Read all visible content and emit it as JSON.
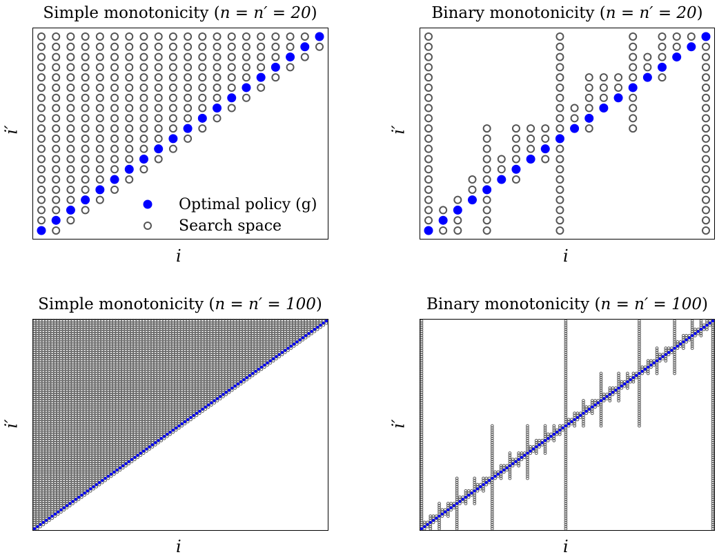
{
  "chart_data": [
    {
      "type": "scatter",
      "title": "Simple monotonicity (n = n′ = 20)",
      "title_text": "Simple monotonicity (",
      "title_math": "n = n′ = 20",
      "title_close": ")",
      "xlabel": "i",
      "ylabel": "i′",
      "n": 20,
      "method": "simple",
      "legend": {
        "placement": "bottom-right",
        "entries": [
          "Optimal policy (g)",
          "Search space"
        ]
      },
      "series": [
        {
          "name": "Optimal policy (g)",
          "style": "filled",
          "color": "#0000ff",
          "x": [
            1,
            2,
            3,
            4,
            5,
            6,
            7,
            8,
            9,
            10,
            11,
            12,
            13,
            14,
            15,
            16,
            17,
            18,
            19,
            20
          ],
          "y": [
            1,
            2,
            3,
            4,
            5,
            6,
            7,
            8,
            9,
            10,
            11,
            12,
            13,
            14,
            15,
            16,
            17,
            18,
            19,
            20
          ]
        },
        {
          "name": "Search space",
          "style": "open",
          "color": "#555555",
          "columns": [
            {
              "x": 1,
              "y_from": 1,
              "y_to": 20
            },
            {
              "x": 2,
              "y_from": 1,
              "y_to": 20
            },
            {
              "x": 3,
              "y_from": 2,
              "y_to": 20
            },
            {
              "x": 4,
              "y_from": 3,
              "y_to": 20
            },
            {
              "x": 5,
              "y_from": 4,
              "y_to": 20
            },
            {
              "x": 6,
              "y_from": 5,
              "y_to": 20
            },
            {
              "x": 7,
              "y_from": 6,
              "y_to": 20
            },
            {
              "x": 8,
              "y_from": 7,
              "y_to": 20
            },
            {
              "x": 9,
              "y_from": 8,
              "y_to": 20
            },
            {
              "x": 10,
              "y_from": 9,
              "y_to": 20
            },
            {
              "x": 11,
              "y_from": 10,
              "y_to": 20
            },
            {
              "x": 12,
              "y_from": 11,
              "y_to": 20
            },
            {
              "x": 13,
              "y_from": 12,
              "y_to": 20
            },
            {
              "x": 14,
              "y_from": 13,
              "y_to": 20
            },
            {
              "x": 15,
              "y_from": 14,
              "y_to": 20
            },
            {
              "x": 16,
              "y_from": 15,
              "y_to": 20
            },
            {
              "x": 17,
              "y_from": 16,
              "y_to": 20
            },
            {
              "x": 18,
              "y_from": 17,
              "y_to": 20
            },
            {
              "x": 19,
              "y_from": 18,
              "y_to": 20
            },
            {
              "x": 20,
              "y_from": 19,
              "y_to": 20
            }
          ]
        }
      ]
    },
    {
      "type": "scatter",
      "title": "Binary monotonicity (n = n′ = 20)",
      "title_text": "Binary monotonicity (",
      "title_math": "n = n′ = 20",
      "title_close": ")",
      "xlabel": "i",
      "ylabel": "i′",
      "n": 20,
      "method": "binary",
      "series": [
        {
          "name": "Optimal policy (g)",
          "style": "filled",
          "color": "#0000ff",
          "x": [
            1,
            2,
            3,
            4,
            5,
            6,
            7,
            8,
            9,
            10,
            11,
            12,
            13,
            14,
            15,
            16,
            17,
            18,
            19,
            20
          ],
          "y": [
            1,
            2,
            3,
            4,
            5,
            6,
            7,
            8,
            9,
            10,
            11,
            12,
            13,
            14,
            15,
            16,
            17,
            18,
            19,
            20
          ]
        },
        {
          "name": "Search space",
          "style": "open",
          "color": "#555555",
          "columns": [
            {
              "x": 1,
              "y_from": 1,
              "y_to": 20
            },
            {
              "x": 2,
              "y_from": 1,
              "y_to": 3
            },
            {
              "x": 3,
              "y_from": 1,
              "y_to": 4
            },
            {
              "x": 4,
              "y_from": 4,
              "y_to": 6
            },
            {
              "x": 5,
              "y_from": 1,
              "y_to": 11
            },
            {
              "x": 6,
              "y_from": 6,
              "y_to": 8
            },
            {
              "x": 7,
              "y_from": 6,
              "y_to": 11
            },
            {
              "x": 8,
              "y_from": 8,
              "y_to": 11
            },
            {
              "x": 9,
              "y_from": 8,
              "y_to": 11
            },
            {
              "x": 10,
              "y_from": 1,
              "y_to": 20
            },
            {
              "x": 11,
              "y_from": 11,
              "y_to": 13
            },
            {
              "x": 12,
              "y_from": 11,
              "y_to": 16
            },
            {
              "x": 13,
              "y_from": 13,
              "y_to": 16
            },
            {
              "x": 14,
              "y_from": 14,
              "y_to": 16
            },
            {
              "x": 15,
              "y_from": 11,
              "y_to": 20
            },
            {
              "x": 16,
              "y_from": 16,
              "y_to": 18
            },
            {
              "x": 17,
              "y_from": 16,
              "y_to": 20
            },
            {
              "x": 18,
              "y_from": 18,
              "y_to": 20
            },
            {
              "x": 19,
              "y_from": 19,
              "y_to": 20
            },
            {
              "x": 20,
              "y_from": 1,
              "y_to": 20
            }
          ]
        }
      ]
    },
    {
      "type": "scatter",
      "title": "Simple monotonicity (n = n′ = 100)",
      "title_text": "Simple monotonicity (",
      "title_math": "n = n′ = 100",
      "title_close": ")",
      "xlabel": "i",
      "ylabel": "i′",
      "n": 100,
      "method": "simple",
      "series": [
        {
          "name": "Optimal policy (g)",
          "style": "filled",
          "color": "#0000ff",
          "rule": "y = x",
          "x_range": [
            1,
            100
          ]
        },
        {
          "name": "Search space",
          "style": "open",
          "color": "#555555",
          "rule": "for column i, i′ from max(1, i−1) to 100",
          "x_range": [
            1,
            100
          ]
        }
      ]
    },
    {
      "type": "scatter",
      "title": "Binary monotonicity (n = n′ = 100)",
      "title_text": "Binary monotonicity (",
      "title_math": "n = n′ = 100",
      "title_close": ")",
      "xlabel": "i",
      "ylabel": "i′",
      "n": 100,
      "method": "binary",
      "series": [
        {
          "name": "Optimal policy (g)",
          "style": "filled",
          "color": "#0000ff",
          "rule": "y = x",
          "x_range": [
            1,
            100
          ]
        },
        {
          "name": "Search space",
          "style": "open",
          "color": "#555555",
          "rule": "binary-monotonicity divide and conquer: column 1 and 100 full; midpoint column searches between the optima of its bracketing columns",
          "x_range": [
            1,
            100
          ]
        }
      ]
    }
  ]
}
